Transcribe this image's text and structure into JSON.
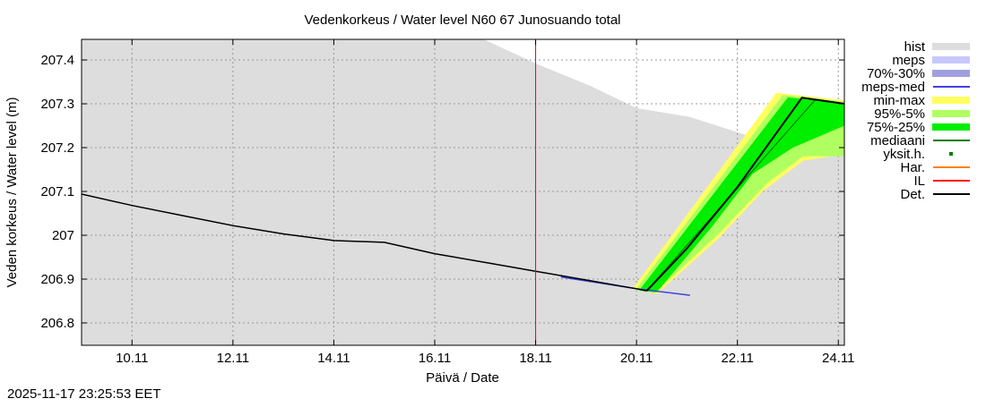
{
  "chart_data": {
    "type": "area",
    "title": "Vedenkorkeus / Water level   N60 67 Junosuando total",
    "xlabel": "Päivä / Date",
    "ylabel": "Veden korkeus / Water level (m)",
    "xlim": [
      9.0,
      24.12
    ],
    "ylim": [
      206.749,
      207.447
    ],
    "x_ticks": [
      {
        "v": 10,
        "label": "10.11"
      },
      {
        "v": 12,
        "label": "12.11"
      },
      {
        "v": 14,
        "label": "14.11"
      },
      {
        "v": 16,
        "label": "16.11"
      },
      {
        "v": 18,
        "label": "18.11"
      },
      {
        "v": 20,
        "label": "20.11"
      },
      {
        "v": 22,
        "label": "22.11"
      },
      {
        "v": 24,
        "label": "24.11"
      }
    ],
    "y_ticks": [
      {
        "v": 206.8,
        "label": "206.8"
      },
      {
        "v": 206.9,
        "label": "206.9"
      },
      {
        "v": 207.0,
        "label": "207"
      },
      {
        "v": 207.1,
        "label": "207.1"
      },
      {
        "v": 207.2,
        "label": "207.2"
      },
      {
        "v": 207.3,
        "label": "207.3"
      },
      {
        "v": 207.4,
        "label": "207.4"
      }
    ],
    "grid": true,
    "legend_position": "right-outside",
    "legend": [
      {
        "label": "hist",
        "kind": "box",
        "color": "#dddddd"
      },
      {
        "label": "meps",
        "kind": "box",
        "color": "#c8c8ff"
      },
      {
        "label": "70%-30%",
        "kind": "box",
        "color": "#a0a0e0"
      },
      {
        "label": "meps-med",
        "kind": "line",
        "color": "#4040e0"
      },
      {
        "label": "min-max",
        "kind": "box",
        "color": "#ffff60"
      },
      {
        "label": "95%-5%",
        "kind": "box",
        "color": "#b0ff60"
      },
      {
        "label": "75%-25%",
        "kind": "box",
        "color": "#00ee00"
      },
      {
        "label": "mediaani",
        "kind": "line",
        "color": "#008000"
      },
      {
        "label": "yksit.h.",
        "kind": "dot",
        "color": "#008000"
      },
      {
        "label": "Har.",
        "kind": "line",
        "color": "#ff8000"
      },
      {
        "label": "IL",
        "kind": "line",
        "color": "#ff0000"
      },
      {
        "label": "Det.",
        "kind": "line",
        "color": "#000000"
      }
    ],
    "vline_il": 18.0,
    "hist_upper": [
      [
        9.0,
        207.447
      ],
      [
        16.97,
        207.447
      ],
      [
        18.04,
        207.39
      ],
      [
        19.1,
        207.34
      ],
      [
        20.0,
        207.29
      ],
      [
        21.06,
        207.27
      ],
      [
        22.13,
        207.23
      ],
      [
        24.12,
        207.18
      ]
    ],
    "min_max": {
      "upper": [
        [
          19.92,
          206.877
        ],
        [
          22.77,
          207.325
        ],
        [
          24.12,
          207.308
        ]
      ],
      "lower": [
        [
          20.4,
          206.866
        ],
        [
          21.6,
          206.99
        ],
        [
          22.5,
          207.1
        ],
        [
          23.3,
          207.17
        ],
        [
          24.12,
          207.185
        ]
      ]
    },
    "p95_5": {
      "upper": [
        [
          19.98,
          206.875
        ],
        [
          22.9,
          207.32
        ],
        [
          24.12,
          207.305
        ]
      ],
      "lower": [
        [
          20.35,
          206.868
        ],
        [
          21.6,
          207.0
        ],
        [
          22.6,
          207.12
        ],
        [
          23.3,
          207.18
        ],
        [
          24.12,
          207.18
        ]
      ]
    },
    "p75_25": {
      "upper": [
        [
          20.05,
          206.874
        ],
        [
          23.0,
          207.315
        ],
        [
          24.12,
          207.3
        ]
      ],
      "lower": [
        [
          20.4,
          206.87
        ],
        [
          21.5,
          207.02
        ],
        [
          22.3,
          207.14
        ],
        [
          23.1,
          207.2
        ],
        [
          24.12,
          207.25
        ]
      ]
    },
    "median": [
      [
        20.2,
        206.873
      ],
      [
        23.55,
        207.31
      ],
      [
        24.12,
        207.3
      ]
    ],
    "meps_med": [
      [
        18.5,
        206.905
      ],
      [
        20.0,
        206.878
      ],
      [
        21.06,
        206.863
      ]
    ],
    "observed": [
      [
        9.0,
        207.094
      ],
      [
        10.0,
        207.068
      ],
      [
        11.0,
        207.045
      ],
      [
        12.0,
        207.022
      ],
      [
        13.0,
        207.003
      ],
      [
        14.0,
        206.988
      ],
      [
        15.0,
        206.984
      ],
      [
        16.0,
        206.958
      ],
      [
        17.0,
        206.938
      ],
      [
        18.0,
        206.918
      ],
      [
        19.0,
        206.898
      ],
      [
        20.0,
        206.878
      ],
      [
        20.2,
        206.873
      ]
    ],
    "det": [
      [
        20.2,
        206.873
      ],
      [
        21.0,
        206.97
      ],
      [
        22.0,
        207.11
      ],
      [
        23.28,
        207.314
      ],
      [
        24.12,
        207.3
      ]
    ]
  },
  "timestamp": "2025-11-17 23:25:53 EET"
}
